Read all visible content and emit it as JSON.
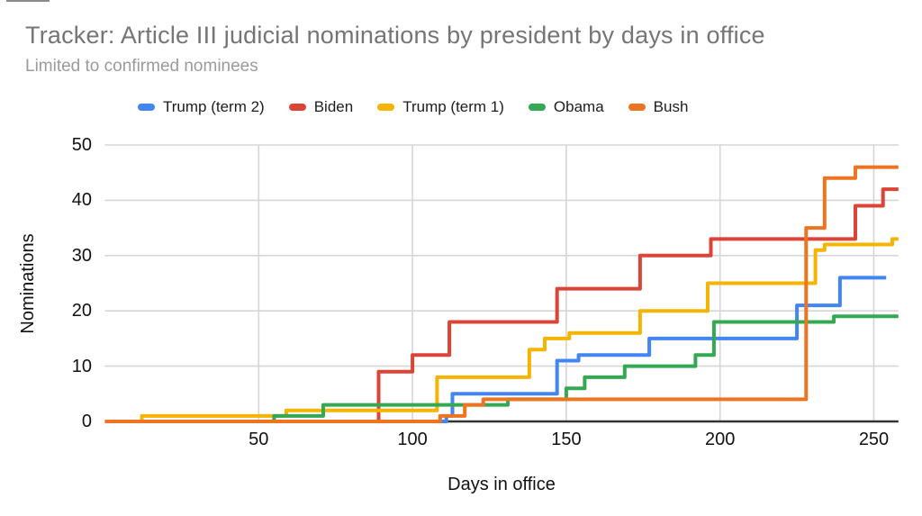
{
  "page": {
    "background": "#ffffff"
  },
  "chart_data": {
    "type": "line",
    "step_interpolation": "step-after",
    "title": "Tracker: Article III judicial nominations by president by days in office",
    "subtitle": "Limited to confirmed nominees",
    "xlabel": "Days in office",
    "ylabel": "Nominations",
    "xlim": [
      0,
      258
    ],
    "ylim": [
      0,
      50
    ],
    "x_ticks": [
      50,
      100,
      150,
      200,
      250
    ],
    "y_ticks": [
      0,
      10,
      20,
      30,
      40,
      50
    ],
    "grid": true,
    "legend_position": "top",
    "colors": {
      "title_text": "#757575",
      "subtitle_text": "#9b9b9b",
      "axis_text": "#111111",
      "gridline": "#d6d6d6",
      "baseline": "#333333"
    },
    "series": [
      {
        "name": "Trump (term 2)",
        "color": "#4285F4",
        "end_x": 254,
        "points": [
          [
            0,
            0
          ],
          [
            111,
            1
          ],
          [
            113,
            5
          ],
          [
            147,
            11
          ],
          [
            154,
            12
          ],
          [
            177,
            15
          ],
          [
            225,
            21
          ],
          [
            239,
            26
          ]
        ]
      },
      {
        "name": "Biden",
        "color": "#DB4437",
        "end_x": 258,
        "points": [
          [
            0,
            0
          ],
          [
            89,
            9
          ],
          [
            100,
            12
          ],
          [
            112,
            18
          ],
          [
            147,
            24
          ],
          [
            174,
            30
          ],
          [
            197,
            33
          ],
          [
            244,
            39
          ],
          [
            253,
            42
          ]
        ]
      },
      {
        "name": "Trump (term 1)",
        "color": "#F4B400",
        "end_x": 258,
        "points": [
          [
            0,
            0
          ],
          [
            12,
            1
          ],
          [
            59,
            2
          ],
          [
            108,
            8
          ],
          [
            138,
            13
          ],
          [
            143,
            15
          ],
          [
            151,
            16
          ],
          [
            174,
            20
          ],
          [
            196,
            25
          ],
          [
            231,
            31
          ],
          [
            234,
            32
          ],
          [
            256,
            33
          ]
        ]
      },
      {
        "name": "Obama",
        "color": "#34A853",
        "end_x": 258,
        "points": [
          [
            0,
            0
          ],
          [
            55,
            1
          ],
          [
            71,
            3
          ],
          [
            131,
            4
          ],
          [
            150,
            6
          ],
          [
            156,
            8
          ],
          [
            169,
            10
          ],
          [
            192,
            12
          ],
          [
            198,
            18
          ],
          [
            237,
            19
          ]
        ]
      },
      {
        "name": "Bush",
        "color": "#ED7421",
        "end_x": 258,
        "points": [
          [
            0,
            0
          ],
          [
            109,
            1
          ],
          [
            117,
            3
          ],
          [
            123,
            4
          ],
          [
            228,
            35
          ],
          [
            234,
            44
          ],
          [
            244,
            46
          ]
        ]
      }
    ]
  }
}
